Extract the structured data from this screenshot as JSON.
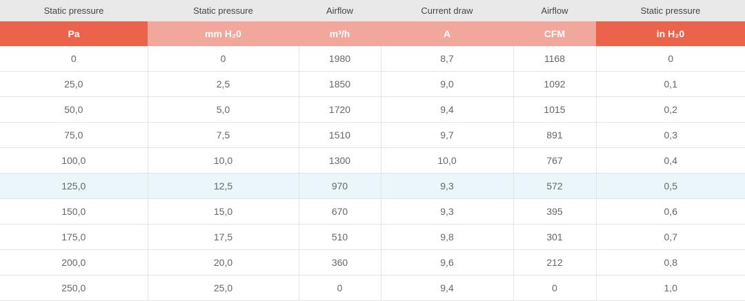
{
  "table": {
    "headers": [
      "Static pressure",
      "Static pressure",
      "Airflow",
      "Current draw",
      "Airflow",
      "Static pressure"
    ],
    "units": [
      "Pa",
      "mm H₂0",
      "m³/h",
      "A",
      "CFM",
      "in H₂0"
    ],
    "highlighted_row": 5,
    "colors": {
      "accent": "#ec634c",
      "accent_light": "#f2a79d",
      "highlight": "#ebf6fb"
    },
    "rows": [
      [
        "0",
        "0",
        "1980",
        "8,7",
        "1168",
        "0"
      ],
      [
        "25,0",
        "2,5",
        "1850",
        "9,0",
        "1092",
        "0,1"
      ],
      [
        "50,0",
        "5,0",
        "1720",
        "9,4",
        "1015",
        "0,2"
      ],
      [
        "75,0",
        "7,5",
        "1510",
        "9,7",
        "891",
        "0,3"
      ],
      [
        "100,0",
        "10,0",
        "1300",
        "10,0",
        "767",
        "0,4"
      ],
      [
        "125,0",
        "12,5",
        "970",
        "9,3",
        "572",
        "0,5"
      ],
      [
        "150,0",
        "15,0",
        "670",
        "9,3",
        "395",
        "0,6"
      ],
      [
        "175,0",
        "17,5",
        "510",
        "9,8",
        "301",
        "0,7"
      ],
      [
        "200,0",
        "20,0",
        "360",
        "9,6",
        "212",
        "0,8"
      ],
      [
        "250,0",
        "25,0",
        "0",
        "9,4",
        "0",
        "1,0"
      ]
    ]
  }
}
